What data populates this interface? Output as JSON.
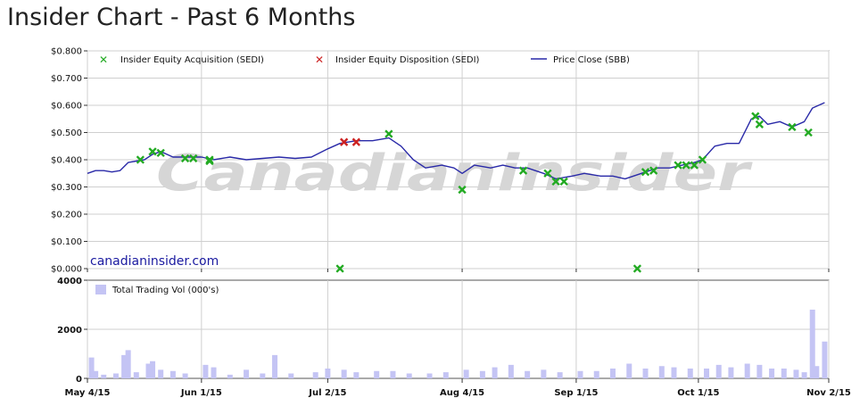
{
  "page": {
    "title": "Insider Chart - Past 6 Months"
  },
  "colors": {
    "acquisition": "#22aa22",
    "disposition": "#cc2222",
    "price": "#2a2aa8",
    "volume": "#c4c4f4",
    "watermark": "#d6d6d6",
    "grid": "#cfcfcf",
    "link": "#1a1aa0"
  },
  "chart_data": [
    {
      "type": "line",
      "watermark": "Canadianinsider",
      "source_label": "canadianinsider.com",
      "ylim": [
        0,
        0.8
      ],
      "yticks": [
        "$0.800",
        "$0.700",
        "$0.600",
        "$0.500",
        "$0.400",
        "$0.300",
        "$0.200",
        "$0.100",
        "$0.000"
      ],
      "grid": true,
      "legend_position": "top",
      "x_range": [
        "2015-05-04",
        "2015-11-02"
      ],
      "xticks": [
        {
          "date": "2015-05-04",
          "label": "May 4/15"
        },
        {
          "date": "2015-06-01",
          "label": "Jun 1/15"
        },
        {
          "date": "2015-07-02",
          "label": "Jul 2/15"
        },
        {
          "date": "2015-08-04",
          "label": "Aug 4/15"
        },
        {
          "date": "2015-09-01",
          "label": "Sep 1/15"
        },
        {
          "date": "2015-10-01",
          "label": "Oct 1/15"
        },
        {
          "date": "2015-11-02",
          "label": "Nov 2/15"
        }
      ],
      "series": [
        {
          "name": "Insider Equity Acquisition (SEDI)",
          "marker": "x",
          "points": [
            [
              "2015-05-17",
              0.4
            ],
            [
              "2015-05-20",
              0.43
            ],
            [
              "2015-05-22",
              0.425
            ],
            [
              "2015-05-28",
              0.405
            ],
            [
              "2015-05-30",
              0.405
            ],
            [
              "2015-06-03",
              0.4
            ],
            [
              "2015-06-03",
              0.395
            ],
            [
              "2015-07-05",
              0.0
            ],
            [
              "2015-07-17",
              0.495
            ],
            [
              "2015-08-04",
              0.29
            ],
            [
              "2015-08-19",
              0.36
            ],
            [
              "2015-08-25",
              0.35
            ],
            [
              "2015-08-27",
              0.32
            ],
            [
              "2015-08-29",
              0.32
            ],
            [
              "2015-09-16",
              0.0
            ],
            [
              "2015-09-18",
              0.355
            ],
            [
              "2015-09-20",
              0.36
            ],
            [
              "2015-09-26",
              0.38
            ],
            [
              "2015-09-28",
              0.38
            ],
            [
              "2015-09-30",
              0.38
            ],
            [
              "2015-10-02",
              0.4
            ],
            [
              "2015-10-15",
              0.56
            ],
            [
              "2015-10-16",
              0.53
            ],
            [
              "2015-10-24",
              0.52
            ],
            [
              "2015-10-28",
              0.5
            ]
          ]
        },
        {
          "name": "Insider Equity Disposition (SEDI)",
          "marker": "x",
          "points": [
            [
              "2015-07-06",
              0.465
            ],
            [
              "2015-07-09",
              0.465
            ]
          ]
        },
        {
          "name": "Price Close (SBB)",
          "points": [
            [
              "2015-05-04",
              0.35
            ],
            [
              "2015-05-06",
              0.36
            ],
            [
              "2015-05-08",
              0.36
            ],
            [
              "2015-05-10",
              0.355
            ],
            [
              "2015-05-12",
              0.36
            ],
            [
              "2015-05-14",
              0.39
            ],
            [
              "2015-05-16",
              0.395
            ],
            [
              "2015-05-18",
              0.4
            ],
            [
              "2015-05-20",
              0.42
            ],
            [
              "2015-05-22",
              0.43
            ],
            [
              "2015-05-25",
              0.41
            ],
            [
              "2015-05-28",
              0.41
            ],
            [
              "2015-06-01",
              0.41
            ],
            [
              "2015-06-04",
              0.4
            ],
            [
              "2015-06-08",
              0.41
            ],
            [
              "2015-06-12",
              0.4
            ],
            [
              "2015-06-16",
              0.405
            ],
            [
              "2015-06-20",
              0.41
            ],
            [
              "2015-06-24",
              0.405
            ],
            [
              "2015-06-28",
              0.41
            ],
            [
              "2015-07-02",
              0.44
            ],
            [
              "2015-07-05",
              0.46
            ],
            [
              "2015-07-09",
              0.47
            ],
            [
              "2015-07-13",
              0.47
            ],
            [
              "2015-07-17",
              0.48
            ],
            [
              "2015-07-20",
              0.45
            ],
            [
              "2015-07-23",
              0.4
            ],
            [
              "2015-07-26",
              0.37
            ],
            [
              "2015-07-30",
              0.38
            ],
            [
              "2015-08-02",
              0.37
            ],
            [
              "2015-08-04",
              0.35
            ],
            [
              "2015-08-07",
              0.38
            ],
            [
              "2015-08-11",
              0.37
            ],
            [
              "2015-08-14",
              0.38
            ],
            [
              "2015-08-17",
              0.37
            ],
            [
              "2015-08-20",
              0.37
            ],
            [
              "2015-08-24",
              0.35
            ],
            [
              "2015-08-27",
              0.33
            ],
            [
              "2015-08-31",
              0.34
            ],
            [
              "2015-09-03",
              0.35
            ],
            [
              "2015-09-07",
              0.34
            ],
            [
              "2015-09-10",
              0.34
            ],
            [
              "2015-09-13",
              0.33
            ],
            [
              "2015-09-17",
              0.35
            ],
            [
              "2015-09-21",
              0.37
            ],
            [
              "2015-09-24",
              0.37
            ],
            [
              "2015-09-27",
              0.38
            ],
            [
              "2015-09-30",
              0.39
            ],
            [
              "2015-10-02",
              0.4
            ],
            [
              "2015-10-05",
              0.45
            ],
            [
              "2015-10-08",
              0.46
            ],
            [
              "2015-10-11",
              0.46
            ],
            [
              "2015-10-14",
              0.55
            ],
            [
              "2015-10-16",
              0.56
            ],
            [
              "2015-10-18",
              0.53
            ],
            [
              "2015-10-21",
              0.54
            ],
            [
              "2015-10-24",
              0.52
            ],
            [
              "2015-10-27",
              0.54
            ],
            [
              "2015-10-29",
              0.59
            ],
            [
              "2015-11-01",
              0.61
            ]
          ]
        }
      ]
    },
    {
      "type": "bar",
      "ylim": [
        0,
        4000
      ],
      "yticks": [
        "4000",
        "2000",
        "0"
      ],
      "grid": true,
      "series": [
        {
          "name": "Total Trading Vol (000's)",
          "points": [
            [
              "2015-05-05",
              850
            ],
            [
              "2015-05-06",
              300
            ],
            [
              "2015-05-08",
              150
            ],
            [
              "2015-05-11",
              200
            ],
            [
              "2015-05-13",
              950
            ],
            [
              "2015-05-14",
              1150
            ],
            [
              "2015-05-16",
              250
            ],
            [
              "2015-05-19",
              600
            ],
            [
              "2015-05-20",
              700
            ],
            [
              "2015-05-22",
              350
            ],
            [
              "2015-05-25",
              300
            ],
            [
              "2015-05-28",
              200
            ],
            [
              "2015-06-02",
              550
            ],
            [
              "2015-06-04",
              450
            ],
            [
              "2015-06-08",
              150
            ],
            [
              "2015-06-12",
              350
            ],
            [
              "2015-06-16",
              200
            ],
            [
              "2015-06-19",
              950
            ],
            [
              "2015-06-23",
              200
            ],
            [
              "2015-06-29",
              250
            ],
            [
              "2015-07-02",
              400
            ],
            [
              "2015-07-06",
              350
            ],
            [
              "2015-07-09",
              250
            ],
            [
              "2015-07-14",
              300
            ],
            [
              "2015-07-18",
              300
            ],
            [
              "2015-07-22",
              200
            ],
            [
              "2015-07-27",
              200
            ],
            [
              "2015-07-31",
              250
            ],
            [
              "2015-08-05",
              350
            ],
            [
              "2015-08-09",
              300
            ],
            [
              "2015-08-12",
              450
            ],
            [
              "2015-08-16",
              550
            ],
            [
              "2015-08-20",
              300
            ],
            [
              "2015-08-24",
              350
            ],
            [
              "2015-08-28",
              250
            ],
            [
              "2015-09-02",
              300
            ],
            [
              "2015-09-06",
              300
            ],
            [
              "2015-09-10",
              400
            ],
            [
              "2015-09-14",
              600
            ],
            [
              "2015-09-18",
              400
            ],
            [
              "2015-09-22",
              500
            ],
            [
              "2015-09-25",
              450
            ],
            [
              "2015-09-29",
              400
            ],
            [
              "2015-10-03",
              400
            ],
            [
              "2015-10-06",
              550
            ],
            [
              "2015-10-09",
              450
            ],
            [
              "2015-10-13",
              600
            ],
            [
              "2015-10-16",
              550
            ],
            [
              "2015-10-19",
              400
            ],
            [
              "2015-10-22",
              400
            ],
            [
              "2015-10-25",
              350
            ],
            [
              "2015-10-27",
              250
            ],
            [
              "2015-10-29",
              2800
            ],
            [
              "2015-10-30",
              500
            ],
            [
              "2015-11-01",
              1500
            ]
          ]
        }
      ]
    }
  ]
}
